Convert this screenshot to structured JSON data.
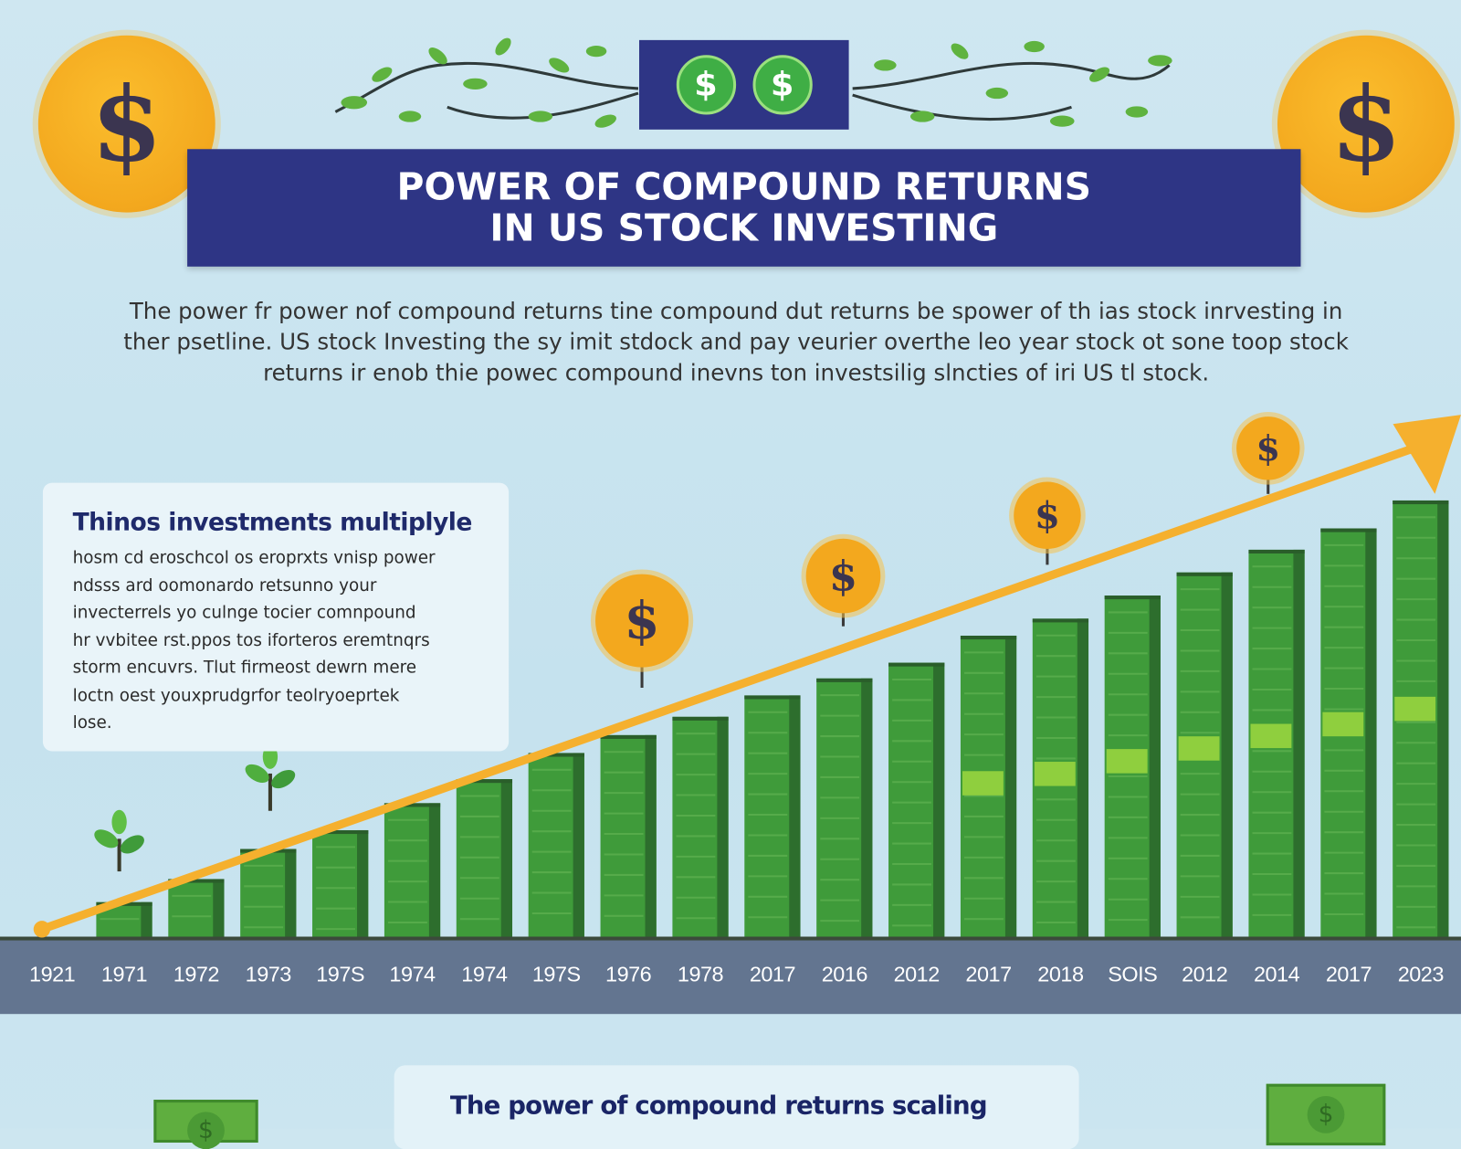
{
  "header": {
    "title_line1": "POWER OF COMPOUND RETURNS",
    "title_line2": "IN US STOCK INVESTING",
    "coin_symbol": "$"
  },
  "intro": {
    "lines": [
      "The power fr power nof compound returns tine compound dut returns be spower of th ias stock inrvesting in",
      "ther psetline. US stock Investing the sy imit stdock and pay veurier overthe leo year stock ot sone toop stock",
      "returns ir enob thie powec compound inevns ton investsilig slncties of iri US tl stock."
    ]
  },
  "card": {
    "heading": "Thinos investments multiplyle",
    "lines": [
      "hosm cd eroschcol os eroprxts vnisp power",
      "ndsss ard oomonardo retsunno your",
      "invecterrels yo culnge tocier comnpound",
      "hr vvbitee rst.ppos tos iforteros eremtnqrs",
      "storm encuvrs. Tlut firmeost dewrn mere",
      "loctn oest youxprudgrfor teolryoeprtek",
      "lose."
    ]
  },
  "bottom": {
    "heading": "The power of compound returns scaling",
    "bill_symbol": "$"
  },
  "colors": {
    "navy": "#2e3585",
    "coin": "#f3a81e",
    "bar": "#3f9b3a",
    "bar_dark": "#2d6e2d",
    "arrow": "#f5b02e",
    "axis_band": "#637590"
  },
  "chart_data": {
    "type": "bar",
    "title": "",
    "xlabel": "",
    "ylabel": "",
    "y_axis_shown": false,
    "value_units": "relative height, tallest bar = 100",
    "tick_labels": [
      "1921",
      "1971",
      "1972",
      "1973",
      "197S",
      "1974",
      "1974",
      "197S",
      "1976",
      "1978",
      "2017",
      "2016",
      "2012",
      "2017",
      "2018",
      "SOIS",
      "2012",
      "2014",
      "2017",
      "2023"
    ],
    "categories": [
      "1971",
      "1972",
      "1973",
      "197S",
      "1974",
      "1974",
      "197S",
      "1976",
      "1978",
      "2017",
      "2016",
      "2012",
      "2017",
      "2018",
      "SOIS",
      "2012",
      "2014",
      "2017",
      "2023"
    ],
    "values": [
      7.9,
      13.2,
      20.1,
      24.4,
      30.6,
      36.1,
      42.1,
      46.2,
      50.4,
      55.3,
      59.2,
      62.8,
      69.0,
      72.9,
      78.2,
      83.5,
      88.7,
      93.6,
      100
    ],
    "ylim": [
      0,
      100
    ],
    "trend_arrow": "rising left to right",
    "grid": false,
    "legend": "none"
  }
}
